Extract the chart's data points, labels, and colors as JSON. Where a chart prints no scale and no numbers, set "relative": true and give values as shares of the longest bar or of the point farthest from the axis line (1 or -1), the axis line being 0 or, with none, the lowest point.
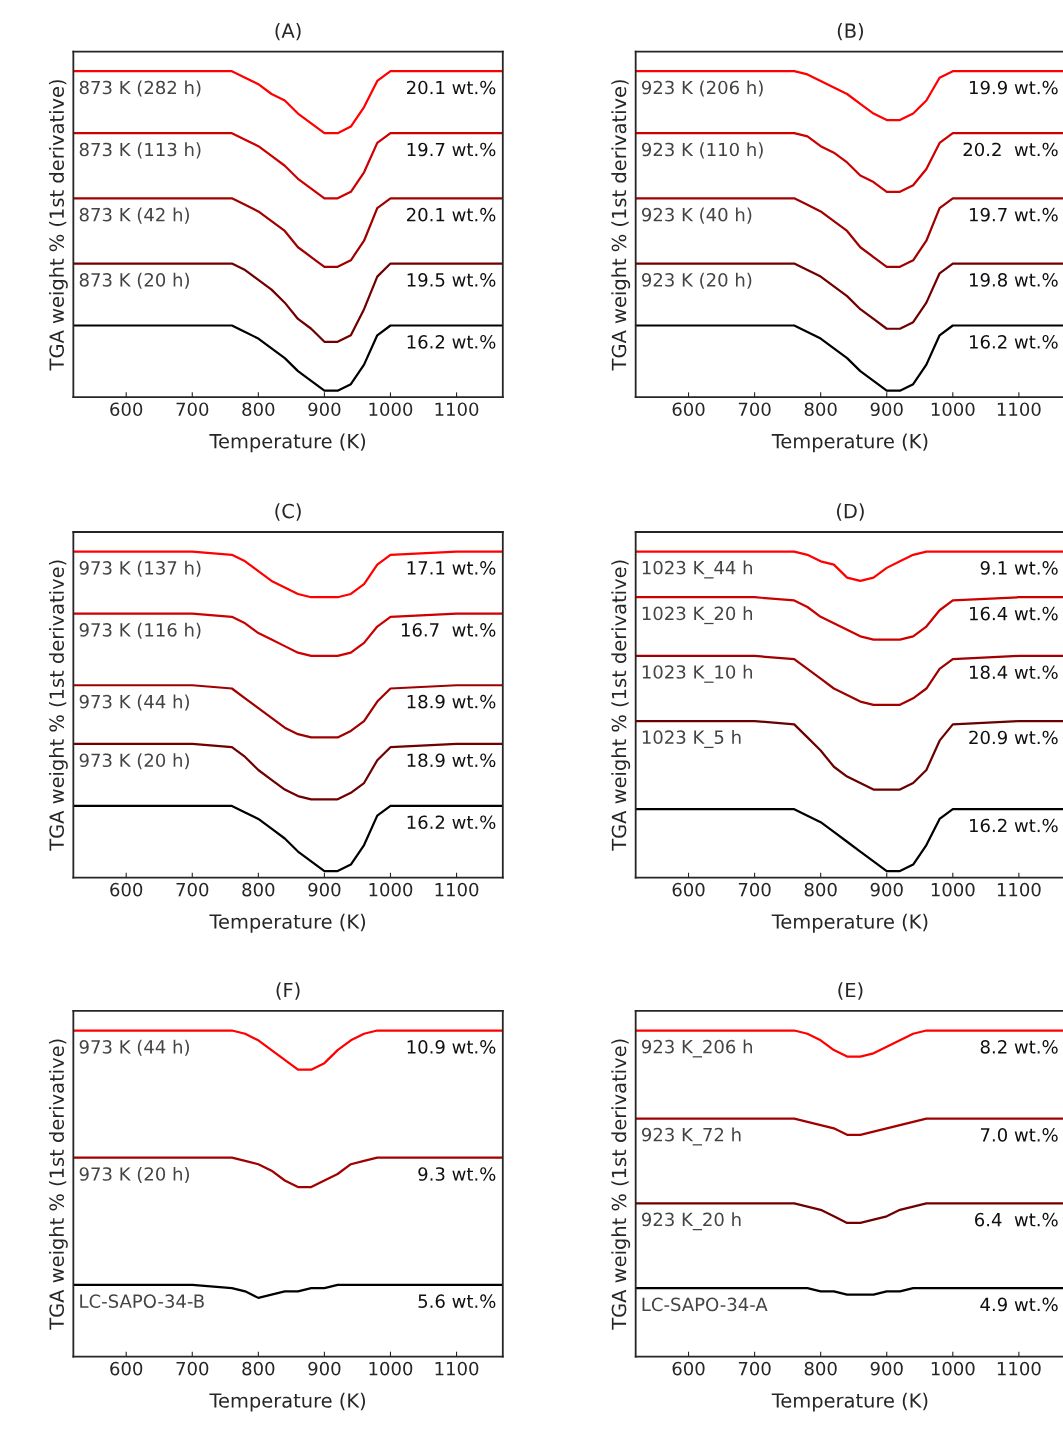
{
  "chart_data": [
    {
      "type": "line",
      "title": "(A)",
      "xlabel": "Temperature (K)",
      "ylabel": "TGA weight % (1st derivative)",
      "relative": true,
      "legend": false,
      "grid": false,
      "tick_labels": "x",
      "xlim": [
        520,
        1170
      ],
      "xticks": [
        600,
        700,
        800,
        900,
        1000,
        1100
      ],
      "x": [
        520,
        600,
        700,
        760,
        780,
        800,
        820,
        840,
        860,
        880,
        900,
        920,
        940,
        960,
        980,
        1000,
        1100,
        1170
      ],
      "series": [
        {
          "name": "873 K (282 h)",
          "color": "#ff0000",
          "values": [
            1,
            1,
            1,
            1.0,
            0.98,
            0.96,
            0.93,
            0.91,
            0.87,
            0.84,
            0.81,
            0.81,
            0.83,
            0.89,
            0.97,
            1.0,
            1,
            1
          ]
        },
        {
          "name": "873 K (113 h)",
          "color": "#cc0000",
          "values": [
            0.81,
            0.81,
            0.81,
            0.81,
            0.79,
            0.77,
            0.74,
            0.71,
            0.67,
            0.64,
            0.61,
            0.61,
            0.63,
            0.69,
            0.78,
            0.81,
            0.81,
            0.81
          ]
        },
        {
          "name": "873 K (42 h)",
          "color": "#a00000",
          "values": [
            0.61,
            0.61,
            0.61,
            0.61,
            0.59,
            0.57,
            0.54,
            0.51,
            0.46,
            0.43,
            0.4,
            0.4,
            0.42,
            0.48,
            0.58,
            0.61,
            0.61,
            0.61
          ]
        },
        {
          "name": "873 K (20 h)",
          "color": "#700000",
          "values": [
            0.41,
            0.41,
            0.41,
            0.41,
            0.39,
            0.36,
            0.33,
            0.29,
            0.24,
            0.21,
            0.17,
            0.17,
            0.19,
            0.27,
            0.37,
            0.41,
            0.41,
            0.41
          ]
        },
        {
          "color": "#000000",
          "values": [
            0.22,
            0.22,
            0.22,
            0.22,
            0.2,
            0.18,
            0.15,
            0.12,
            0.08,
            0.05,
            0.02,
            0.02,
            0.04,
            0.1,
            0.19,
            0.22,
            0.22,
            0.22
          ]
        }
      ],
      "annotations": [
        "20.1 wt.%",
        "19.7 wt.%",
        "20.1 wt.%",
        "19.5 wt.%",
        "16.2 wt.%"
      ]
    },
    {
      "type": "line",
      "title": "(B)",
      "xlabel": "Temperature (K)",
      "ylabel": "TGA weight % (1st derivative)",
      "relative": true,
      "legend": false,
      "grid": false,
      "tick_labels": "x",
      "xlim": [
        520,
        1170
      ],
      "xticks": [
        600,
        700,
        800,
        900,
        1000,
        1100
      ],
      "x": [
        520,
        600,
        700,
        760,
        780,
        800,
        820,
        840,
        860,
        880,
        900,
        920,
        940,
        960,
        980,
        1000,
        1100,
        1170
      ],
      "series": [
        {
          "name": "923 K (206 h)",
          "color": "#ff0000",
          "values": [
            1,
            1,
            1,
            1.0,
            0.99,
            0.97,
            0.95,
            0.93,
            0.9,
            0.87,
            0.85,
            0.85,
            0.87,
            0.91,
            0.98,
            1.0,
            1,
            1
          ]
        },
        {
          "name": "923 K (110 h)",
          "color": "#cc0000",
          "values": [
            0.81,
            0.81,
            0.81,
            0.81,
            0.8,
            0.77,
            0.75,
            0.72,
            0.68,
            0.66,
            0.63,
            0.63,
            0.65,
            0.7,
            0.78,
            0.81,
            0.81,
            0.81
          ]
        },
        {
          "name": "923 K (40 h)",
          "color": "#a00000",
          "values": [
            0.61,
            0.61,
            0.61,
            0.61,
            0.59,
            0.57,
            0.54,
            0.51,
            0.46,
            0.43,
            0.4,
            0.4,
            0.42,
            0.48,
            0.58,
            0.61,
            0.61,
            0.61
          ]
        },
        {
          "name": "923 K (20 h)",
          "color": "#700000",
          "values": [
            0.41,
            0.41,
            0.41,
            0.41,
            0.39,
            0.37,
            0.34,
            0.31,
            0.27,
            0.24,
            0.21,
            0.21,
            0.23,
            0.29,
            0.38,
            0.41,
            0.41,
            0.41
          ]
        },
        {
          "color": "#000000",
          "values": [
            0.22,
            0.22,
            0.22,
            0.22,
            0.2,
            0.18,
            0.15,
            0.12,
            0.08,
            0.05,
            0.02,
            0.02,
            0.04,
            0.1,
            0.19,
            0.22,
            0.22,
            0.22
          ]
        }
      ],
      "annotations": [
        "19.9 wt.%",
        "20.2  wt.%",
        "19.7 wt.%",
        "19.8 wt.%",
        "16.2 wt.%"
      ]
    },
    {
      "type": "line",
      "title": "(C)",
      "xlabel": "Temperature (K)",
      "ylabel": "TGA weight % (1st derivative)",
      "relative": true,
      "legend": false,
      "grid": false,
      "tick_labels": "x",
      "xlim": [
        520,
        1170
      ],
      "xticks": [
        600,
        700,
        800,
        900,
        1000,
        1100
      ],
      "x": [
        520,
        600,
        700,
        760,
        780,
        800,
        820,
        840,
        860,
        880,
        900,
        920,
        940,
        960,
        980,
        1000,
        1100,
        1170
      ],
      "series": [
        {
          "name": "973 K (137 h)",
          "color": "#ff0000",
          "values": [
            1,
            1,
            1,
            0.99,
            0.97,
            0.94,
            0.91,
            0.89,
            0.87,
            0.86,
            0.86,
            0.86,
            0.87,
            0.9,
            0.96,
            0.99,
            1,
            1
          ]
        },
        {
          "name": "973 K (116 h)",
          "color": "#cc0000",
          "values": [
            0.81,
            0.81,
            0.81,
            0.8,
            0.78,
            0.75,
            0.73,
            0.71,
            0.69,
            0.68,
            0.68,
            0.68,
            0.69,
            0.72,
            0.77,
            0.8,
            0.81,
            0.81
          ]
        },
        {
          "name": "973 K (44 h)",
          "color": "#a00000",
          "values": [
            0.59,
            0.59,
            0.59,
            0.58,
            0.55,
            0.52,
            0.49,
            0.46,
            0.44,
            0.43,
            0.43,
            0.43,
            0.45,
            0.48,
            0.54,
            0.58,
            0.59,
            0.59
          ]
        },
        {
          "name": "973 K (20 h)",
          "color": "#700000",
          "values": [
            0.41,
            0.41,
            0.41,
            0.4,
            0.37,
            0.33,
            0.3,
            0.27,
            0.25,
            0.24,
            0.24,
            0.24,
            0.26,
            0.29,
            0.36,
            0.4,
            0.41,
            0.41
          ]
        },
        {
          "color": "#000000",
          "values": [
            0.22,
            0.22,
            0.22,
            0.22,
            0.2,
            0.18,
            0.15,
            0.12,
            0.08,
            0.05,
            0.02,
            0.02,
            0.04,
            0.1,
            0.19,
            0.22,
            0.22,
            0.22
          ]
        }
      ],
      "annotations": [
        "17.1 wt.%",
        "16.7  wt.%",
        "18.9 wt.%",
        "18.9 wt.%",
        "16.2 wt.%"
      ]
    },
    {
      "type": "line",
      "title": "(D)",
      "xlabel": "Temperature (K)",
      "ylabel": "TGA weight % (1st derivative)",
      "relative": true,
      "legend": false,
      "grid": false,
      "tick_labels": "x",
      "xlim": [
        520,
        1170
      ],
      "xticks": [
        600,
        700,
        800,
        900,
        1000,
        1100
      ],
      "x": [
        520,
        600,
        700,
        760,
        780,
        800,
        820,
        840,
        860,
        880,
        900,
        920,
        940,
        960,
        980,
        1000,
        1100,
        1170
      ],
      "series": [
        {
          "name": "1023 K_44 h",
          "color": "#ff0000",
          "values": [
            1,
            1,
            1,
            1.0,
            0.99,
            0.97,
            0.96,
            0.92,
            0.91,
            0.92,
            0.95,
            0.97,
            0.99,
            1.0,
            1,
            1,
            1,
            1
          ]
        },
        {
          "name": "1023 K_20 h",
          "color": "#cc0000",
          "values": [
            0.86,
            0.86,
            0.86,
            0.85,
            0.83,
            0.8,
            0.78,
            0.76,
            0.74,
            0.73,
            0.73,
            0.73,
            0.74,
            0.77,
            0.82,
            0.85,
            0.86,
            0.86
          ]
        },
        {
          "name": "1023 K_10 h",
          "color": "#a00000",
          "values": [
            0.68,
            0.68,
            0.68,
            0.67,
            0.64,
            0.61,
            0.58,
            0.56,
            0.54,
            0.53,
            0.53,
            0.53,
            0.55,
            0.58,
            0.64,
            0.67,
            0.68,
            0.68
          ]
        },
        {
          "name": "1023 K_5 h",
          "color": "#6a0000",
          "values": [
            0.48,
            0.48,
            0.48,
            0.47,
            0.43,
            0.39,
            0.34,
            0.31,
            0.29,
            0.27,
            0.27,
            0.27,
            0.29,
            0.33,
            0.42,
            0.47,
            0.48,
            0.48
          ]
        },
        {
          "color": "#000000",
          "values": [
            0.21,
            0.21,
            0.21,
            0.21,
            0.19,
            0.17,
            0.14,
            0.11,
            0.08,
            0.05,
            0.02,
            0.02,
            0.04,
            0.1,
            0.18,
            0.21,
            0.21,
            0.21
          ]
        }
      ],
      "annotations": [
        "9.1 wt.%",
        "16.4 wt.%",
        "18.4 wt.%",
        "20.9 wt.%",
        "16.2 wt.%"
      ]
    },
    {
      "type": "line",
      "title": "(F)",
      "xlabel": "Temperature (K)",
      "ylabel": "TGA weight % (1st derivative)",
      "relative": true,
      "legend": false,
      "grid": false,
      "tick_labels": "x",
      "xlim": [
        520,
        1170
      ],
      "xticks": [
        600,
        700,
        800,
        900,
        1000,
        1100
      ],
      "x": [
        520,
        600,
        700,
        760,
        780,
        800,
        820,
        840,
        860,
        880,
        900,
        920,
        940,
        960,
        980,
        1000,
        1100,
        1170
      ],
      "series": [
        {
          "name": "973 K (44 h)",
          "color": "#ff0000",
          "values": [
            1,
            1,
            1,
            1.0,
            0.99,
            0.97,
            0.94,
            0.91,
            0.88,
            0.88,
            0.9,
            0.94,
            0.97,
            0.99,
            1.0,
            1,
            1,
            1
          ]
        },
        {
          "name": "973 K (20 h)",
          "color": "#a00000",
          "values": [
            0.61,
            0.61,
            0.61,
            0.61,
            0.6,
            0.59,
            0.57,
            0.54,
            0.52,
            0.52,
            0.54,
            0.56,
            0.59,
            0.6,
            0.61,
            0.61,
            0.61,
            0.61
          ]
        },
        {
          "name": "LC-SAPO-34-B",
          "color": "#000000",
          "values": [
            0.22,
            0.22,
            0.22,
            0.21,
            0.2,
            0.18,
            0.19,
            0.2,
            0.2,
            0.21,
            0.21,
            0.22,
            0.22,
            0.22,
            0.22,
            0.22,
            0.22,
            0.22
          ]
        }
      ],
      "annotations": [
        "10.9 wt.%",
        "9.3 wt.%",
        "5.6 wt.%"
      ]
    },
    {
      "type": "line",
      "title": "(E)",
      "xlabel": "Temperature (K)",
      "ylabel": "TGA weight % (1st derivative)",
      "relative": true,
      "legend": false,
      "grid": false,
      "tick_labels": "x",
      "xlim": [
        520,
        1170
      ],
      "xticks": [
        600,
        700,
        800,
        900,
        1000,
        1100
      ],
      "x": [
        520,
        600,
        700,
        760,
        780,
        800,
        820,
        840,
        860,
        880,
        900,
        920,
        940,
        960,
        980,
        1000,
        1100,
        1170
      ],
      "series": [
        {
          "name": "923 K_206 h",
          "color": "#ff0000",
          "values": [
            1,
            1,
            1,
            1.0,
            0.99,
            0.97,
            0.94,
            0.92,
            0.92,
            0.93,
            0.95,
            0.97,
            0.99,
            1.0,
            1,
            1,
            1,
            1
          ]
        },
        {
          "name": "923 K_72 h",
          "color": "#a00000",
          "values": [
            0.73,
            0.73,
            0.73,
            0.73,
            0.72,
            0.71,
            0.7,
            0.68,
            0.68,
            0.69,
            0.7,
            0.71,
            0.72,
            0.73,
            0.73,
            0.73,
            0.73,
            0.73
          ]
        },
        {
          "name": "923 K_20 h",
          "color": "#700000",
          "values": [
            0.47,
            0.47,
            0.47,
            0.47,
            0.46,
            0.45,
            0.43,
            0.41,
            0.41,
            0.42,
            0.43,
            0.45,
            0.46,
            0.47,
            0.47,
            0.47,
            0.47,
            0.47
          ]
        },
        {
          "name": "LC-SAPO-34-A",
          "color": "#000000",
          "values": [
            0.21,
            0.21,
            0.21,
            0.21,
            0.21,
            0.2,
            0.2,
            0.19,
            0.19,
            0.19,
            0.2,
            0.2,
            0.21,
            0.21,
            0.21,
            0.21,
            0.21,
            0.21
          ]
        }
      ],
      "annotations": [
        "8.2 wt.%",
        "7.0 wt.%",
        "6.4  wt.%",
        "4.9 wt.%"
      ]
    }
  ]
}
